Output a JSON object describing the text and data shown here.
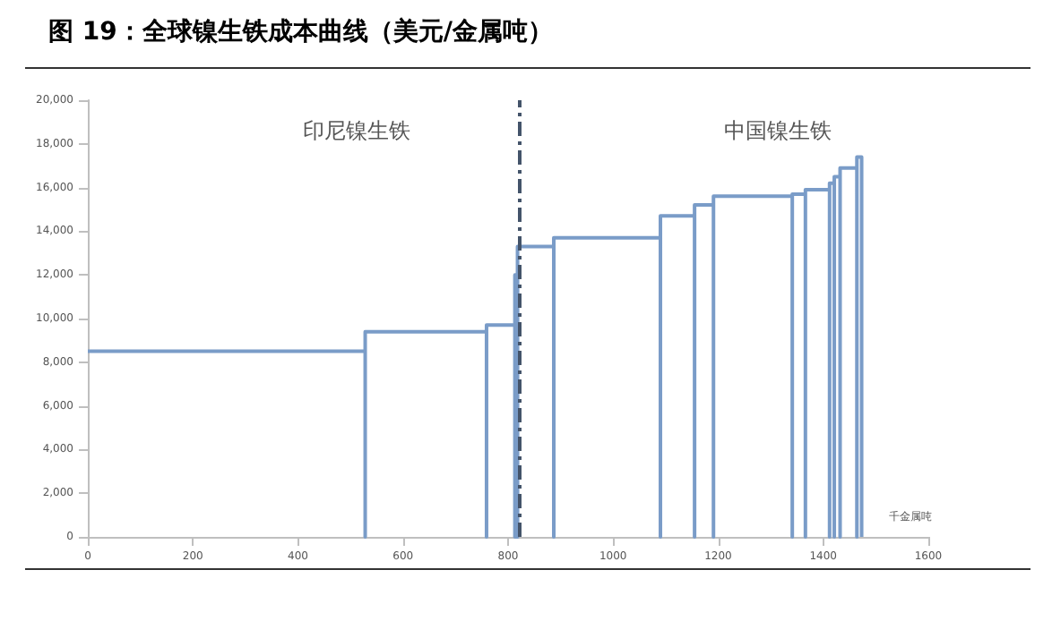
{
  "chart_data": {
    "type": "line",
    "title": "图 19：全球镍生铁成本曲线（美元/金属吨）",
    "xlabel": "千金属吨",
    "x": [
      0,
      528,
      528,
      528,
      759,
      759,
      759,
      813,
      813,
      813,
      818,
      818,
      818,
      887,
      887,
      887,
      1090,
      1090,
      1090,
      1155,
      1155,
      1155,
      1191,
      1191,
      1191,
      1341,
      1341,
      1341,
      1366,
      1366,
      1366,
      1412,
      1412,
      1412,
      1421,
      1421,
      1421,
      1432,
      1432,
      1432,
      1464,
      1464,
      1464,
      1473,
      1473
    ],
    "values": [
      8500,
      8500,
      0,
      9400,
      9400,
      0,
      9700,
      9700,
      0,
      12000,
      12000,
      0,
      13300,
      13300,
      0,
      13700,
      13700,
      0,
      14700,
      14700,
      0,
      15200,
      15200,
      0,
      15600,
      15600,
      0,
      15700,
      15700,
      0,
      15900,
      15900,
      0,
      16200,
      16200,
      0,
      16500,
      16500,
      0,
      16900,
      16900,
      0,
      17400,
      17400,
      0
    ],
    "color": "#7a9cc8",
    "xlim": [
      0,
      1600
    ],
    "xticks": [
      0,
      200,
      400,
      600,
      800,
      1000,
      1200,
      1400,
      1600
    ],
    "ylim": [
      0,
      20000
    ],
    "yticks": [
      {
        "value": 0,
        "label": "0"
      },
      {
        "value": 2000,
        "label": "2,000"
      },
      {
        "value": 4000,
        "label": "4,000"
      },
      {
        "value": 6000,
        "label": "6,000"
      },
      {
        "value": 8000,
        "label": "8,000"
      },
      {
        "value": 10000,
        "label": "10,000"
      },
      {
        "value": 12000,
        "label": "12,000"
      },
      {
        "value": 14000,
        "label": "14,000"
      },
      {
        "value": 16000,
        "label": "16,000"
      },
      {
        "value": 18000,
        "label": "18,000"
      },
      {
        "value": 20000,
        "label": "20,000"
      }
    ],
    "ref_lines": [
      {
        "axis": "x",
        "value": 820,
        "color": "#44546a",
        "line_style": "dashdot"
      }
    ],
    "annotations": [
      "印尼镍生铁",
      "中国镍生铁"
    ],
    "grid": false,
    "marker": "none"
  }
}
